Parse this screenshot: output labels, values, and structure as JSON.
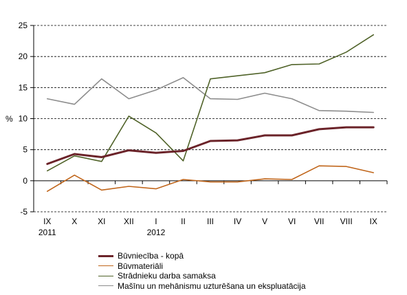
{
  "chart_data": {
    "type": "line",
    "ylabel": "%",
    "ylim": [
      -5,
      25
    ],
    "yticks": [
      -5,
      0,
      5,
      10,
      15,
      20,
      25
    ],
    "grid": "horizontal dashed",
    "legend": "bottom",
    "categories": [
      "IX",
      "X",
      "XI",
      "XII",
      "I",
      "II",
      "III",
      "IV",
      "V",
      "VI",
      "VII",
      "VIII",
      "IX"
    ],
    "year_labels": [
      {
        "index": 0,
        "text": "2011"
      },
      {
        "index": 4,
        "text": "2012"
      }
    ],
    "series": [
      {
        "name": "Būvniecība - kopā",
        "color": "#6b2329",
        "width": 3,
        "values": [
          2.7,
          4.3,
          3.8,
          4.9,
          4.5,
          4.8,
          6.4,
          6.5,
          7.3,
          7.3,
          8.3,
          8.6,
          8.6
        ]
      },
      {
        "name": "Būvmateriāli",
        "color": "#c0651a",
        "width": 1.6,
        "values": [
          -1.7,
          0.9,
          -1.5,
          -0.9,
          -1.3,
          0.2,
          -0.2,
          -0.2,
          0.3,
          0.2,
          2.4,
          2.3,
          1.3
        ]
      },
      {
        "name": "Strādnieku darba samaksa",
        "color": "#4f6228",
        "width": 1.6,
        "values": [
          1.6,
          4.0,
          3.1,
          10.4,
          7.7,
          3.2,
          16.4,
          16.9,
          17.4,
          18.7,
          18.8,
          20.7,
          23.5
        ]
      },
      {
        "name": "Mašīnu un mehānismu uzturēšana un ekspluatācija",
        "color": "#8c8c8c",
        "width": 1.6,
        "values": [
          13.2,
          12.3,
          16.4,
          13.2,
          14.6,
          16.6,
          13.2,
          13.1,
          14.1,
          13.2,
          11.3,
          11.2,
          11.0
        ]
      }
    ]
  }
}
